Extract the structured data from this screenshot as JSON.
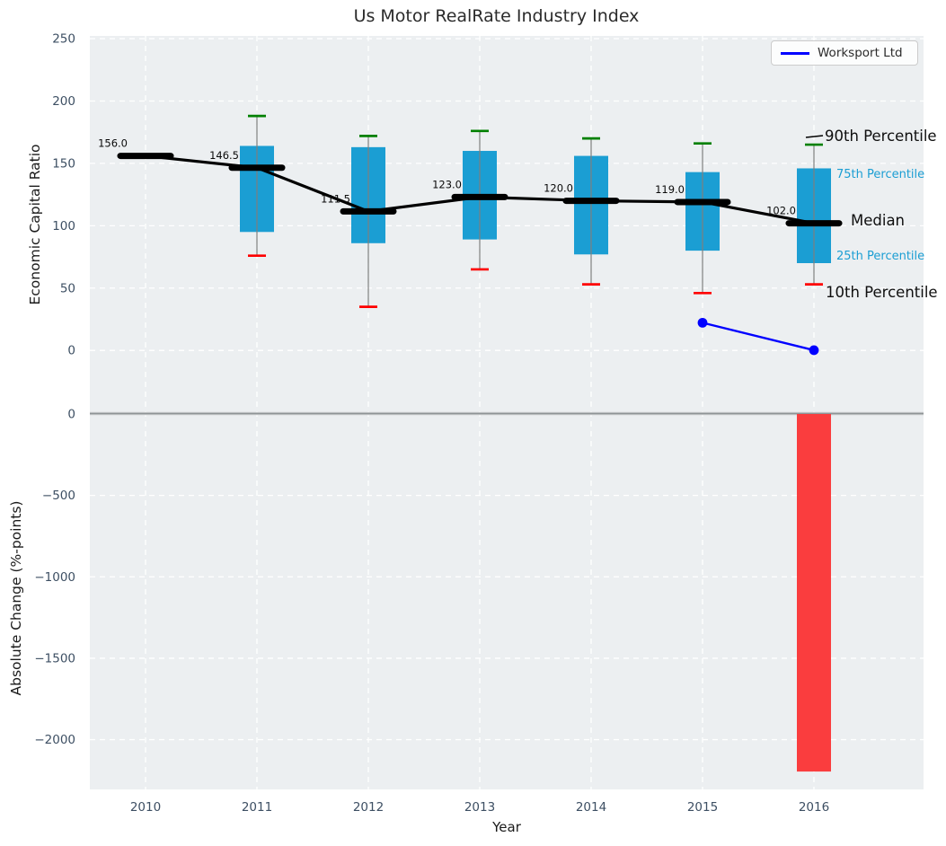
{
  "title": "Us Motor RealRate Industry Index",
  "legend": {
    "label": "Worksport Ltd"
  },
  "xlabel": "Year",
  "colors": {
    "axes_background": "#eceff1",
    "grid": "#ffffff",
    "tick_label": "#3d4f63",
    "box_fill": "#1b9ed3",
    "whisker": "#7f7f7f",
    "cap_90th": "#008000",
    "cap_10th": "#fe0000",
    "median_line": "#000000",
    "worksport_line": "#0000ff",
    "change_bar": "#fa3d3e",
    "zero_line": "#8f9496",
    "annotation_big": "#0f0f0f",
    "annotation_small": "#1b9ed3",
    "median_value_label": "#0a0a0a"
  },
  "chart_data": [
    {
      "type": "box",
      "panel": "top",
      "title": "Us Motor RealRate Industry Index",
      "ylabel": "Economic Capital Ratio",
      "yticks": [
        0,
        50,
        100,
        150,
        200,
        250
      ],
      "ylim": [
        -50,
        252
      ],
      "grid": true,
      "categories": [
        2010,
        2011,
        2012,
        2013,
        2014,
        2015,
        2016
      ],
      "boxes": [
        {
          "year": 2010,
          "p10": null,
          "p25": null,
          "median": 156.0,
          "p75": null,
          "p90": null,
          "median_label": "156.0"
        },
        {
          "year": 2011,
          "p10": 76,
          "p25": 95,
          "median": 146.5,
          "p75": 164,
          "p90": 188,
          "median_label": "146.5"
        },
        {
          "year": 2012,
          "p10": 35,
          "p25": 86,
          "median": 111.5,
          "p75": 163,
          "p90": 172,
          "median_label": "111.5"
        },
        {
          "year": 2013,
          "p10": 65,
          "p25": 89,
          "median": 123.0,
          "p75": 160,
          "p90": 176,
          "median_label": "123.0"
        },
        {
          "year": 2014,
          "p10": 53,
          "p25": 77,
          "median": 120.0,
          "p75": 156,
          "p90": 170,
          "median_label": "120.0"
        },
        {
          "year": 2015,
          "p10": 46,
          "p25": 80,
          "median": 119.0,
          "p75": 143,
          "p90": 166,
          "median_label": "119.0"
        },
        {
          "year": 2016,
          "p10": 53,
          "p25": 70,
          "median": 102.0,
          "p75": 146,
          "p90": 165,
          "median_label": "102.0"
        }
      ],
      "series": [
        {
          "name": "Worksport Ltd",
          "x": [
            2015,
            2016
          ],
          "y": [
            22.2,
            0.2
          ]
        }
      ],
      "percentile_labels": {
        "p90": "90th Percentile",
        "p75": "75th Percentile",
        "median": "Median",
        "p25": "25th Percentile",
        "p10": "10th Percentile"
      },
      "legend_position": "upper right"
    },
    {
      "type": "bar",
      "panel": "bottom",
      "ylabel": "Absolute Change (%-points)",
      "yticks": [
        0,
        -500,
        -1000,
        -1500,
        -2000
      ],
      "ylim": [
        -2306,
        0
      ],
      "grid": true,
      "categories": [
        2010,
        2011,
        2012,
        2013,
        2014,
        2015,
        2016
      ],
      "bars": [
        {
          "year": 2016,
          "value": -2196
        }
      ],
      "xlabel": "Year"
    }
  ]
}
